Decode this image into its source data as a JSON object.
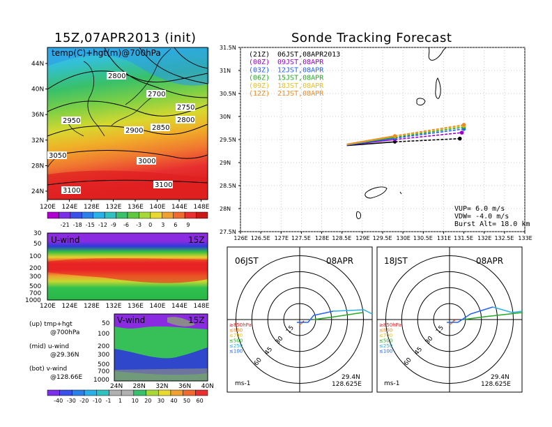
{
  "titles": {
    "left_title": "15Z,07APR2013 (init)",
    "right_title": "Sonde Tracking Forecast",
    "temp_label": "temp(C)+hgt(m)@700hPa",
    "uwind_label": "U-wind",
    "vwind_label": "V-wind",
    "time_15z_1": "15Z",
    "time_15z_2": "15Z"
  },
  "side_notes": {
    "up1": "(up) tmp+hgt",
    "up2": "@700hPa",
    "mid1": "(mid) u-wind",
    "mid2": "@29.36N",
    "bot1": "(bot) v-wind",
    "bot2": "@128.66E"
  },
  "colors": {
    "c00": "#3a8ff0",
    "c03": "#2060ff",
    "c06": "#22aa22",
    "c09": "#e8c020",
    "c12": "#f08a20",
    "c21": "#000000",
    "c00z": "#9900cc"
  },
  "chart_data": [
    {
      "type": "heatmap",
      "name": "temp_hgt_700",
      "x_ticks": [
        "120E",
        "124E",
        "128E",
        "132E",
        "136E",
        "140E",
        "144E",
        "148E"
      ],
      "y_ticks": [
        "24N",
        "28N",
        "32N",
        "36N",
        "40N",
        "44N"
      ],
      "contour_labels": [
        "2800",
        "2700",
        "2750",
        "2800",
        "2950",
        "2900",
        "2850",
        "3050",
        "3000",
        "3100",
        "3100"
      ],
      "colorbar_ticks": [
        "-21",
        "-18",
        "-15",
        "-12",
        "-9",
        "-6",
        "-3",
        "0",
        "3",
        "6",
        "9"
      ]
    },
    {
      "type": "heatmap",
      "name": "u_wind",
      "x_ticks": [
        "120E",
        "124E",
        "128E",
        "132E",
        "136E",
        "140E",
        "144E",
        "148E"
      ],
      "y_ticks": [
        "30",
        "50",
        "100",
        "200",
        "300",
        "500",
        "700",
        "1000"
      ]
    },
    {
      "type": "heatmap",
      "name": "v_wind",
      "x_ticks": [
        "24N",
        "28N",
        "32N",
        "36N",
        "40N"
      ],
      "y_ticks": [
        "50",
        "100",
        "200",
        "300",
        "500",
        "700",
        "1000"
      ],
      "colorbar_ticks": [
        "-40",
        "-30",
        "-20",
        "-10",
        "-1",
        "1",
        "10",
        "20",
        "30",
        "40",
        "50",
        "60"
      ]
    },
    {
      "type": "line",
      "name": "track_map",
      "x_ticks": [
        "126E",
        "126.5E",
        "127E",
        "127.5E",
        "128E",
        "128.5E",
        "129E",
        "129.5E",
        "130E",
        "130.5E",
        "131E",
        "131.5E",
        "132E",
        "132.5E",
        "133E"
      ],
      "y_ticks": [
        "27.5N",
        "28N",
        "28.5N",
        "29N",
        "29.5N",
        "30N",
        "30.5N",
        "31N",
        "31.5N"
      ],
      "xlim": [
        126,
        133
      ],
      "ylim": [
        27.5,
        31.5
      ],
      "legend": [
        {
          "key": "(21Z)",
          "text": "06JST,08APR2013",
          "color": "#000000"
        },
        {
          "key": "(00Z)",
          "text": "09JST,08APR",
          "color": "#9900cc"
        },
        {
          "key": "(03Z)",
          "text": "12JST,08APR",
          "color": "#2060ff"
        },
        {
          "key": "(06Z)",
          "text": "15JST,08APR",
          "color": "#22aa22"
        },
        {
          "key": "(09Z)",
          "text": "18JST,08APR",
          "color": "#e8c020"
        },
        {
          "key": "(12Z)",
          "text": "21JST,08APR",
          "color": "#f08a20"
        }
      ],
      "series": [
        {
          "name": "(21Z)",
          "color": "#000000",
          "x": [
            128.62,
            129.8,
            131.4
          ],
          "y": [
            29.37,
            29.45,
            29.52
          ]
        },
        {
          "name": "(00Z)",
          "color": "#9900cc",
          "x": [
            128.62,
            129.8,
            131.45
          ],
          "y": [
            29.38,
            29.5,
            29.65
          ]
        },
        {
          "name": "(03Z)",
          "color": "#2060ff",
          "x": [
            128.62,
            129.8,
            131.5
          ],
          "y": [
            29.38,
            29.53,
            29.73
          ]
        },
        {
          "name": "(06Z)",
          "color": "#22aa22",
          "x": [
            128.62,
            129.8,
            131.5
          ],
          "y": [
            29.39,
            29.55,
            29.77
          ]
        },
        {
          "name": "(09Z)",
          "color": "#e8c020",
          "x": [
            128.62,
            129.8,
            131.5
          ],
          "y": [
            29.39,
            29.57,
            29.8
          ]
        },
        {
          "name": "(12Z)",
          "color": "#f08a20",
          "x": [
            128.62,
            129.8,
            131.5
          ],
          "y": [
            29.4,
            29.58,
            29.82
          ]
        }
      ],
      "info": {
        "vup": "VUP= 6.0 m/s",
        "vdw": "VDW= -4.0 m/s",
        "burst": "Burst Alt= 18.0 km"
      }
    },
    {
      "type": "scatter",
      "name": "hodograph_06jst",
      "time": "06JST",
      "date": "08APR",
      "ring_labels": [
        "15",
        "30",
        "45",
        "60"
      ],
      "levels": [
        "≥850hPa",
        "≤850",
        "≤700",
        "≤500",
        "≤250",
        "≤100"
      ],
      "unit": "ms-1",
      "lat": "29.4N",
      "lon": "128.625E"
    },
    {
      "type": "scatter",
      "name": "hodograph_18jst",
      "time": "18JST",
      "date": "08APR",
      "ring_labels": [
        "15",
        "30",
        "45",
        "60"
      ],
      "levels": [
        "≥850hPa",
        "≤850",
        "≤700",
        "≤500",
        "≤250",
        "≤100"
      ],
      "unit": "ms-1",
      "lat": "29.4N",
      "lon": "128.625E"
    }
  ]
}
